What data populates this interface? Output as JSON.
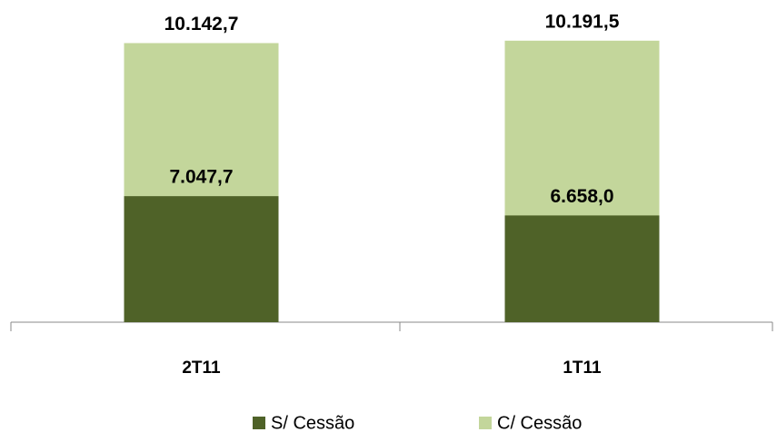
{
  "chart_data": {
    "type": "bar",
    "categories": [
      "2T11",
      "1T11"
    ],
    "series": [
      {
        "name": "C/ Cessão",
        "color": "#c3d69b",
        "values": [
          10142.7,
          10191.5
        ],
        "value_labels": [
          "10.142,7",
          "10.191,5"
        ]
      },
      {
        "name": "S/ Cessão",
        "color": "#4f6228",
        "values": [
          7047.7,
          6658.0
        ],
        "value_labels": [
          "7.047,7",
          "6.658,0"
        ]
      }
    ],
    "ylim": [
      4500,
      10500
    ],
    "legend": "bottom"
  }
}
